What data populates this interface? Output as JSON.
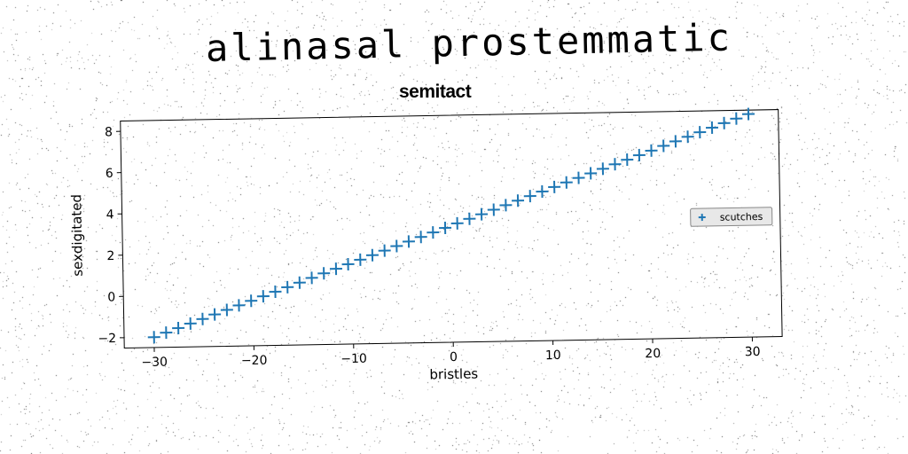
{
  "header": {
    "title": "alinasal prostemmatic"
  },
  "chart_data": {
    "type": "scatter",
    "title": "semitact",
    "xlabel": "bristles",
    "ylabel": "sexdigitated",
    "xlim": [
      -33,
      33
    ],
    "ylim": [
      -2.5,
      8.5
    ],
    "xticks": [
      -30,
      -20,
      -10,
      0,
      10,
      20,
      30
    ],
    "xtick_labels": [
      "−30",
      "−20",
      "−10",
      "0",
      "10",
      "20",
      "30"
    ],
    "yticks": [
      -2,
      0,
      2,
      4,
      6,
      8
    ],
    "ytick_labels": [
      "−2",
      "0",
      "2",
      "4",
      "6",
      "8"
    ],
    "grid": false,
    "legend_position": "right",
    "marker": "+",
    "series": [
      {
        "name": "scutches",
        "color": "#1f77b4",
        "x": [
          -30,
          -28.78,
          -27.55,
          -26.33,
          -25.1,
          -23.88,
          -22.65,
          -21.43,
          -20.2,
          -18.98,
          -17.76,
          -16.53,
          -15.31,
          -14.08,
          -12.86,
          -11.63,
          -10.41,
          -9.18,
          -7.96,
          -6.73,
          -5.51,
          -4.29,
          -3.06,
          -1.84,
          -0.61,
          0.61,
          1.84,
          3.06,
          4.29,
          5.51,
          6.73,
          7.96,
          9.18,
          10.41,
          11.63,
          12.86,
          14.08,
          15.31,
          16.53,
          17.76,
          18.98,
          20.2,
          21.43,
          22.65,
          23.88,
          25.1,
          26.33,
          27.55,
          28.78,
          30
        ],
        "y": [
          -2.0,
          -1.79,
          -1.58,
          -1.37,
          -1.16,
          -0.95,
          -0.74,
          -0.53,
          -0.32,
          -0.11,
          0.1,
          0.31,
          0.52,
          0.74,
          0.95,
          1.16,
          1.37,
          1.58,
          1.79,
          2.0,
          2.21,
          2.42,
          2.63,
          2.84,
          3.05,
          3.26,
          3.47,
          3.68,
          3.89,
          4.1,
          4.31,
          4.52,
          4.73,
          4.94,
          5.15,
          5.36,
          5.57,
          5.78,
          5.99,
          6.2,
          6.41,
          6.62,
          6.84,
          7.05,
          7.26,
          7.47,
          7.68,
          7.89,
          8.1,
          8.31
        ]
      }
    ]
  }
}
